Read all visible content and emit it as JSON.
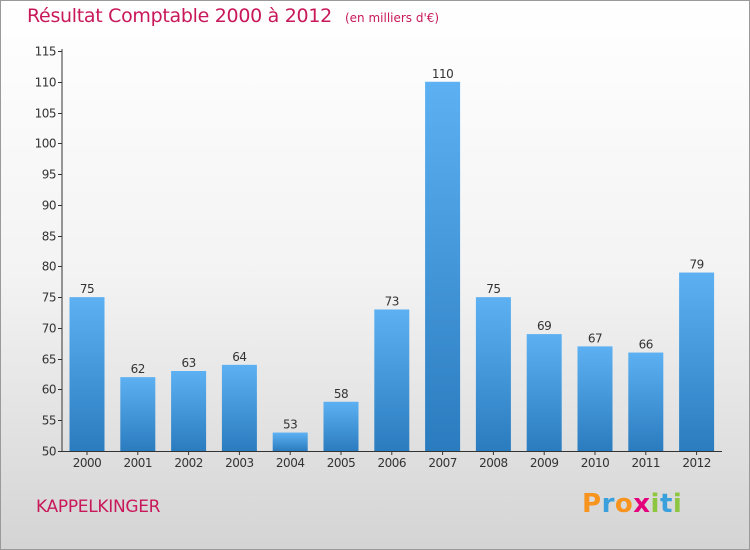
{
  "header": {
    "title": "Résultat Comptable 2000 à 2012",
    "unit": "(en milliers d'€)"
  },
  "footer": {
    "commune": "KAPPELKINGER",
    "logo": "Proxiti"
  },
  "colors": {
    "title": "#c8185a",
    "bar_light": "#5aaef0",
    "bar_dark": "#2a7dc0",
    "axis": "#333333"
  },
  "chart_data": {
    "type": "bar",
    "title": "Résultat Comptable 2000 à 2012",
    "ylabel": "(en milliers d'€)",
    "xlabel": "",
    "categories": [
      "2000",
      "2001",
      "2002",
      "2003",
      "2004",
      "2005",
      "2006",
      "2007",
      "2008",
      "2009",
      "2010",
      "2011",
      "2012"
    ],
    "values": [
      75,
      62,
      63,
      64,
      53,
      58,
      73,
      110,
      75,
      69,
      67,
      66,
      79
    ],
    "ylim": [
      50,
      115
    ],
    "yticks": [
      50,
      55,
      60,
      65,
      70,
      75,
      80,
      85,
      90,
      95,
      100,
      105,
      110,
      115
    ],
    "grid": false,
    "data_labels": true
  }
}
